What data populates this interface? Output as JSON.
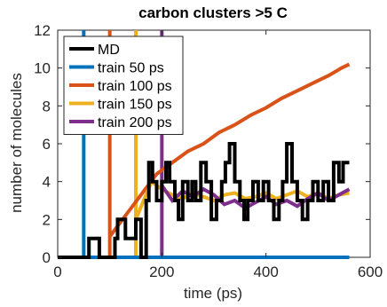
{
  "chart_data": {
    "type": "line",
    "title": "carbon clusters >5 C",
    "xlabel": "time (ps)",
    "ylabel": "number of molecules",
    "xlim": [
      0,
      600
    ],
    "ylim": [
      0,
      12
    ],
    "xticks": [
      0,
      200,
      400,
      600
    ],
    "yticks": [
      0,
      2,
      4,
      6,
      8,
      10,
      12
    ],
    "xtick_labels": [
      "0",
      "200",
      "400",
      "600"
    ],
    "ytick_labels": [
      "0",
      "2",
      "4",
      "6",
      "8",
      "10",
      "12"
    ],
    "legend_position": "top-left",
    "grid": false,
    "vertical_markers": [
      {
        "series": "train 50 ps",
        "x": 50
      },
      {
        "series": "train 100 ps",
        "x": 100
      },
      {
        "series": "train 150 ps",
        "x": 150
      },
      {
        "series": "train 200 ps",
        "x": 200
      }
    ],
    "series": [
      {
        "name": "MD",
        "color": "#000000",
        "x": [
          0,
          60,
          60,
          80,
          80,
          110,
          110,
          115,
          115,
          130,
          130,
          150,
          150,
          160,
          160,
          170,
          170,
          175,
          175,
          182,
          182,
          190,
          190,
          200,
          200,
          208,
          208,
          215,
          215,
          225,
          225,
          232,
          232,
          240,
          240,
          250,
          250,
          258,
          258,
          265,
          265,
          275,
          275,
          285,
          285,
          295,
          295,
          305,
          305,
          315,
          315,
          322,
          322,
          330,
          330,
          340,
          340,
          350,
          350,
          358,
          358,
          365,
          365,
          375,
          375,
          385,
          385,
          395,
          395,
          405,
          405,
          415,
          415,
          425,
          425,
          432,
          432,
          440,
          440,
          450,
          450,
          460,
          460,
          470,
          470,
          480,
          480,
          490,
          490,
          500,
          500,
          510,
          510,
          520,
          520,
          530,
          530,
          540,
          540,
          548,
          548,
          560
        ],
        "y": [
          0,
          0,
          1,
          1,
          0,
          0,
          1,
          1,
          2,
          2,
          1,
          1,
          2,
          2,
          0,
          0,
          3,
          3,
          5,
          5,
          4,
          4,
          3,
          3,
          4,
          4,
          5,
          5,
          4,
          4,
          3,
          3,
          2,
          2,
          4,
          4,
          3,
          3,
          4,
          4,
          3,
          3,
          5,
          5,
          4,
          4,
          2,
          2,
          3,
          3,
          4,
          4,
          5,
          5,
          6,
          6,
          4,
          4,
          3,
          3,
          2,
          2,
          3,
          3,
          4,
          4,
          3,
          3,
          4,
          4,
          3,
          3,
          2,
          2,
          3,
          3,
          4,
          4,
          6,
          6,
          4,
          4,
          3,
          3,
          2,
          2,
          3,
          3,
          4,
          4,
          3,
          3,
          4,
          4,
          3,
          3,
          5,
          5,
          4,
          4,
          5,
          5
        ]
      },
      {
        "name": "train 50 ps",
        "color": "#0072bd",
        "x": [
          50,
          560
        ],
        "y": [
          0,
          0
        ]
      },
      {
        "name": "train 100 ps",
        "color": "#d95319",
        "x": [
          100,
          130,
          160,
          190,
          220,
          250,
          280,
          310,
          340,
          370,
          400,
          430,
          460,
          490,
          520,
          545,
          560
        ],
        "y": [
          1.1,
          2.2,
          3.3,
          4.4,
          5.0,
          5.6,
          6.0,
          6.6,
          7.0,
          7.5,
          7.9,
          8.4,
          8.8,
          9.2,
          9.6,
          10.0,
          10.2
        ]
      },
      {
        "name": "train 150 ps",
        "color": "#edb120",
        "x": [
          150,
          165,
          180,
          200,
          220,
          240,
          260,
          280,
          300,
          320,
          340,
          360,
          380,
          400,
          420,
          440,
          460,
          480,
          500,
          520,
          540,
          560
        ],
        "y": [
          2.0,
          3.0,
          4.0,
          3.6,
          3.3,
          3.1,
          3.4,
          3.2,
          3.0,
          3.3,
          3.4,
          3.1,
          3.2,
          3.4,
          3.1,
          3.3,
          3.5,
          3.2,
          3.4,
          3.1,
          3.3,
          3.4
        ]
      },
      {
        "name": "train 200 ps",
        "color": "#7e2f8e",
        "x": [
          200,
          220,
          240,
          260,
          280,
          300,
          320,
          340,
          360,
          380,
          400,
          420,
          440,
          460,
          480,
          500,
          520,
          540,
          560
        ],
        "y": [
          3.8,
          3.0,
          3.5,
          3.2,
          3.6,
          3.3,
          2.8,
          3.0,
          2.6,
          2.9,
          3.2,
          2.8,
          3.0,
          2.7,
          3.1,
          3.4,
          3.0,
          3.3,
          3.6
        ]
      }
    ]
  }
}
